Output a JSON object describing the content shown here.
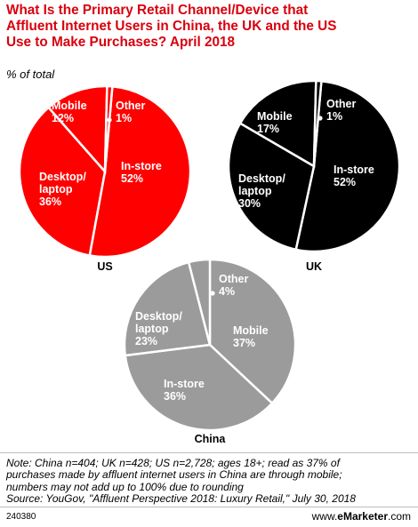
{
  "title_line1": "What Is the Primary Retail Channel/Device that",
  "title_line2": "Affluent Internet Users in China, the UK and the US",
  "title_line3": "Use to Make Purchases? April 2018",
  "subtitle": "% of total",
  "chart_data": [
    {
      "type": "pie",
      "title": "US",
      "color": "#ff0000",
      "label_color": "#ffffff",
      "slices": [
        {
          "label": "In-store",
          "value": 52
        },
        {
          "label": "Desktop/ laptop",
          "value": 36
        },
        {
          "label": "Mobile",
          "value": 12
        },
        {
          "label": "Other",
          "value": 1
        }
      ]
    },
    {
      "type": "pie",
      "title": "UK",
      "color": "#000000",
      "label_color": "#ffffff",
      "slices": [
        {
          "label": "In-store",
          "value": 52
        },
        {
          "label": "Desktop/ laptop",
          "value": 30
        },
        {
          "label": "Mobile",
          "value": 17
        },
        {
          "label": "Other",
          "value": 1
        }
      ]
    },
    {
      "type": "pie",
      "title": "China",
      "color": "#9b9b9b",
      "label_color": "#ffffff",
      "slices": [
        {
          "label": "Mobile",
          "value": 37
        },
        {
          "label": "In-store",
          "value": 36
        },
        {
          "label": "Desktop/ laptop",
          "value": 23
        },
        {
          "label": "Other",
          "value": 4
        }
      ]
    }
  ],
  "note_line1": "Note: China n=404; UK n=428; US n=2,728; ages 18+; read as 37% of",
  "note_line2": "purchases made by affluent internet users in China are through mobile;",
  "note_line3": "numbers may not add up to 100% due to rounding",
  "source": "Source: YouGov, \"Affluent Perspective 2018: Luxury Retail,\" July 30, 2018",
  "chart_id": "240380",
  "brand_prefix": "www.",
  "brand_name": "eMarketer",
  "brand_suffix": ".com"
}
